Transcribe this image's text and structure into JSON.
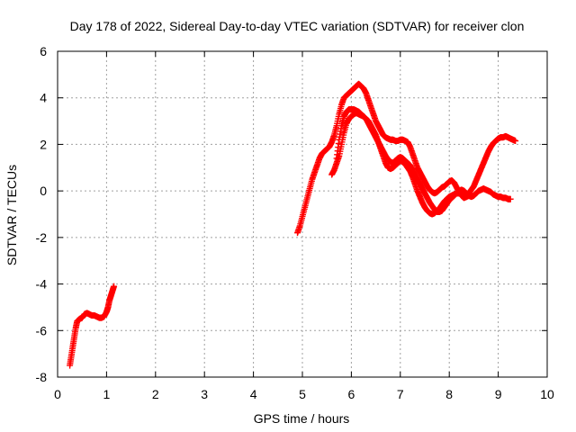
{
  "chart_data": {
    "type": "scatter",
    "title": "Day 178 of 2022, Sidereal Day-to-day VTEC variation (SDTVAR) for receiver clon",
    "xlabel": "GPS time / hours",
    "ylabel": "SDTVAR / TECUs",
    "xlim": [
      0,
      10
    ],
    "ylim": [
      -8,
      6
    ],
    "xticks": [
      "0",
      "1",
      "2",
      "3",
      "4",
      "5",
      "6",
      "7",
      "8",
      "9",
      "10"
    ],
    "yticks": [
      "-8",
      "-6",
      "-4",
      "-2",
      "0",
      "2",
      "4",
      "6"
    ],
    "grid": true,
    "marker": "+",
    "color": "#ff0000",
    "series": [
      {
        "segment": "early",
        "x": [
          0.25,
          0.28,
          0.31,
          0.34,
          0.37,
          0.4,
          0.45,
          0.5,
          0.55,
          0.6,
          0.65,
          0.7,
          0.75,
          0.8,
          0.85,
          0.9,
          0.95,
          1.0,
          1.03,
          1.06,
          1.09,
          1.12,
          1.15
        ],
        "y": [
          -7.5,
          -7.1,
          -6.7,
          -6.3,
          -5.9,
          -5.6,
          -5.5,
          -5.45,
          -5.3,
          -5.25,
          -5.3,
          -5.35,
          -5.35,
          -5.4,
          -5.45,
          -5.45,
          -5.4,
          -5.2,
          -5.0,
          -4.7,
          -4.5,
          -4.3,
          -4.1
        ]
      },
      {
        "segment": "main",
        "x": [
          4.9,
          4.95,
          5.0,
          5.05,
          5.1,
          5.15,
          5.2,
          5.25,
          5.3,
          5.35,
          5.4,
          5.45,
          5.5,
          5.55,
          5.6,
          5.65,
          5.7,
          5.75,
          5.8,
          5.85,
          5.9,
          5.95,
          6.0,
          6.05,
          6.1,
          6.15,
          6.2,
          6.25,
          6.3,
          6.35,
          6.4,
          6.45,
          6.5,
          6.55,
          6.6,
          6.65,
          6.7,
          6.75,
          6.8,
          6.85,
          6.9,
          6.95,
          7.0,
          7.05,
          7.1,
          7.15,
          7.2,
          7.25,
          7.3,
          7.35,
          7.4,
          7.45,
          7.5,
          7.55,
          7.6,
          7.65,
          7.7,
          7.75,
          7.8,
          7.85,
          7.9,
          7.95,
          8.0,
          8.05,
          8.1,
          8.15,
          8.2,
          8.25,
          8.3,
          8.35,
          8.4,
          8.45,
          8.5,
          8.55,
          8.6,
          8.65,
          8.7,
          8.75,
          8.8,
          8.85,
          8.9,
          8.95,
          9.0,
          9.05,
          9.1,
          9.15,
          9.2,
          9.25,
          9.3,
          9.35
        ],
        "y": [
          -1.8,
          -1.5,
          -1.1,
          -0.7,
          -0.3,
          0.1,
          0.5,
          0.8,
          1.1,
          1.4,
          1.6,
          1.7,
          1.8,
          1.9,
          2.1,
          2.4,
          2.8,
          3.3,
          3.7,
          4.0,
          4.1,
          4.2,
          4.3,
          4.4,
          4.5,
          4.6,
          4.5,
          4.4,
          4.2,
          3.9,
          3.6,
          3.3,
          3.0,
          2.8,
          2.6,
          2.4,
          2.3,
          2.25,
          2.2,
          2.2,
          2.15,
          2.15,
          2.2,
          2.2,
          2.15,
          2.1,
          1.9,
          1.6,
          1.3,
          1.0,
          0.8,
          0.6,
          0.4,
          0.2,
          0.05,
          -0.05,
          -0.1,
          -0.05,
          0.05,
          0.15,
          0.2,
          0.3,
          0.4,
          0.45,
          0.35,
          0.15,
          -0.05,
          -0.2,
          -0.3,
          -0.25,
          -0.1,
          0.05,
          0.2,
          0.45,
          0.7,
          0.95,
          1.2,
          1.45,
          1.7,
          1.9,
          2.05,
          2.15,
          2.25,
          2.3,
          2.3,
          2.35,
          2.3,
          2.25,
          2.2,
          2.15
        ]
      },
      {
        "segment": "loop-a",
        "x": [
          5.6,
          5.65,
          5.7,
          5.75,
          5.8,
          5.85,
          5.9,
          5.95,
          6.0,
          6.05,
          6.1,
          6.15,
          6.2,
          6.25,
          6.3,
          6.35,
          6.4,
          6.45,
          6.5,
          6.55,
          6.6,
          6.65,
          6.7,
          6.75,
          6.8,
          6.85,
          6.9,
          6.95,
          7.0,
          7.05,
          7.1,
          7.15,
          7.2,
          7.25,
          7.3,
          7.35,
          7.4,
          7.45,
          7.5,
          7.55,
          7.6,
          7.65,
          7.7,
          7.75,
          7.8,
          7.85,
          7.9,
          7.95,
          8.0,
          8.05,
          8.1,
          8.15,
          8.2,
          8.25,
          8.3,
          8.35,
          8.4
        ],
        "y": [
          0.7,
          0.9,
          1.2,
          1.5,
          2.0,
          2.5,
          2.9,
          3.1,
          3.2,
          3.3,
          3.35,
          3.3,
          3.25,
          3.2,
          3.1,
          3.0,
          2.8,
          2.6,
          2.4,
          2.1,
          1.8,
          1.5,
          1.2,
          1.0,
          0.95,
          1.0,
          1.1,
          1.2,
          1.3,
          1.25,
          1.15,
          1.0,
          0.85,
          0.6,
          0.3,
          0.0,
          -0.25,
          -0.5,
          -0.7,
          -0.85,
          -0.95,
          -1.0,
          -0.95,
          -0.85,
          -0.75,
          -0.6,
          -0.45,
          -0.35,
          -0.25,
          -0.2,
          -0.15,
          -0.1,
          -0.1,
          -0.15,
          -0.2,
          -0.25,
          -0.2
        ]
      },
      {
        "segment": "loop-b",
        "x": [
          5.7,
          5.75,
          5.8,
          5.85,
          5.9,
          5.95,
          6.0,
          6.05,
          6.1,
          6.15,
          6.2,
          6.25,
          6.3,
          6.35,
          6.4,
          6.45,
          6.5,
          6.55,
          6.6,
          6.65,
          6.7,
          6.75,
          6.8,
          6.85,
          6.9,
          6.95,
          7.0,
          7.05,
          7.1,
          7.15,
          7.2,
          7.25,
          7.3,
          7.35,
          7.4,
          7.45,
          7.5,
          7.55,
          7.6,
          7.65,
          7.7,
          7.75,
          7.8,
          7.85,
          7.9,
          7.95,
          8.0,
          8.05,
          8.1,
          8.15,
          8.2,
          8.25,
          8.3,
          8.35,
          8.4,
          8.45,
          8.5,
          8.55,
          8.6,
          8.65,
          8.7,
          8.75,
          8.8,
          8.85,
          8.9,
          8.95,
          9.0,
          9.05,
          9.1,
          9.15,
          9.2,
          9.25
        ],
        "y": [
          1.4,
          2.2,
          2.8,
          3.2,
          3.4,
          3.5,
          3.5,
          3.5,
          3.45,
          3.4,
          3.3,
          3.2,
          3.1,
          2.9,
          2.7,
          2.5,
          2.3,
          2.1,
          1.9,
          1.7,
          1.5,
          1.35,
          1.25,
          1.2,
          1.3,
          1.4,
          1.45,
          1.4,
          1.3,
          1.2,
          1.1,
          0.9,
          0.7,
          0.5,
          0.3,
          0.1,
          -0.1,
          -0.3,
          -0.5,
          -0.65,
          -0.8,
          -0.9,
          -0.9,
          -0.85,
          -0.7,
          -0.55,
          -0.4,
          -0.3,
          -0.2,
          -0.1,
          0.0,
          0.05,
          0.0,
          -0.1,
          -0.2,
          -0.25,
          -0.2,
          -0.1,
          0.0,
          0.05,
          0.1,
          0.05,
          0.0,
          -0.05,
          -0.15,
          -0.2,
          -0.25,
          -0.25,
          -0.3,
          -0.3,
          -0.35,
          -0.35
        ]
      }
    ]
  }
}
